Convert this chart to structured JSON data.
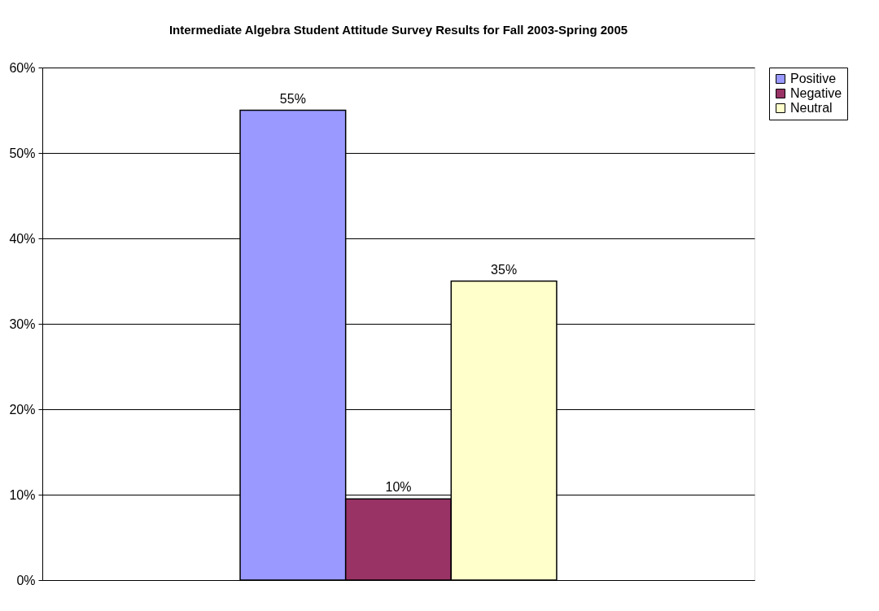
{
  "chart_data": {
    "type": "bar",
    "title": "Intermediate Algebra Student Attitude Survey Results for Fall 2003-Spring 2005",
    "categories": [
      null
    ],
    "series": [
      {
        "name": "Positive",
        "color": "#9999ff",
        "values": [
          55
        ],
        "value_labels": [
          "55%"
        ]
      },
      {
        "name": "Negative",
        "color": "#993366",
        "values": [
          9.5
        ],
        "value_labels": [
          "10%"
        ]
      },
      {
        "name": "Neutral",
        "color": "#ffffcc",
        "values": [
          35
        ],
        "value_labels": [
          "35%"
        ]
      }
    ],
    "ylim": [
      0,
      60
    ],
    "yticks": [
      {
        "value": 0,
        "label": "0%"
      },
      {
        "value": 10,
        "label": "10%"
      },
      {
        "value": 20,
        "label": "20%"
      },
      {
        "value": 30,
        "label": "30%"
      },
      {
        "value": 40,
        "label": "40%"
      },
      {
        "value": 50,
        "label": "50%"
      },
      {
        "value": 60,
        "label": "60%"
      }
    ],
    "grid": "y",
    "legend": "right",
    "tick_labels": "y"
  }
}
